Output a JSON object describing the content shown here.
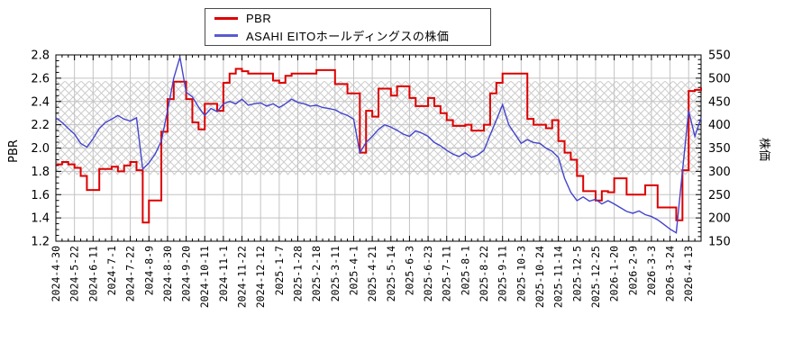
{
  "chart_data": {
    "type": "line",
    "title": "",
    "legend": {
      "position": "top",
      "entries": [
        {
          "label": "PBR",
          "color": "#dd0000"
        },
        {
          "label": "ASAHI EITOホールディングスの株価",
          "color": "#5a5ad0"
        }
      ]
    },
    "x_axis": {
      "tick_labels": [
        "2024-4-30",
        "2024-5-22",
        "2024-6-11",
        "2024-7-1",
        "2024-7-22",
        "2024-8-9",
        "2024-8-30",
        "2024-9-20",
        "2024-10-11",
        "2024-11-1",
        "2024-11-22",
        "2024-12-12",
        "2025-1-7",
        "2025-1-28",
        "2025-2-18",
        "2025-3-11",
        "2025-4-1",
        "2025-4-21",
        "2025-5-14",
        "2025-6-3",
        "2025-6-23",
        "2025-7-11",
        "2025-8-1",
        "2025-8-22",
        "2025-9-11",
        "2025-10-3",
        "2025-10-24",
        "2025-11-14",
        "2025-12-5",
        "2025-12-25",
        "2026-1-20",
        "2026-2-9",
        "2026-3-3",
        "2026-3-24",
        "2026-4-13"
      ],
      "points_per_tick": 3,
      "minor_ticks_per_interval": 3
    },
    "y_left": {
      "label": "PBR",
      "min": 1.2,
      "max": 2.8,
      "tick_step": 0.2,
      "minor_step": 0.05,
      "tick_labels": [
        "1.2",
        "1.4",
        "1.6",
        "1.8",
        "2.0",
        "2.2",
        "2.4",
        "2.6",
        "2.8"
      ]
    },
    "y_right": {
      "label": "株価",
      "min": 150,
      "max": 550,
      "tick_step": 50,
      "minor_step": 10,
      "tick_labels": [
        "150",
        "200",
        "250",
        "300",
        "350",
        "400",
        "450",
        "500",
        "550"
      ]
    },
    "band": {
      "axis": "left",
      "from": 1.77,
      "to": 2.575,
      "style": "diagonal-crosshatch",
      "color": "#cccccc"
    },
    "grid": {
      "color": "#c3c3c3",
      "vertical": true,
      "horizontal": true
    },
    "series": [
      {
        "name": "PBR",
        "axis": "left",
        "color": "#dd0000",
        "interpolation": "step-after",
        "width": 2,
        "values": [
          1.86,
          1.88,
          1.86,
          1.83,
          1.76,
          1.64,
          1.64,
          1.82,
          1.82,
          1.84,
          1.8,
          1.85,
          1.88,
          1.81,
          1.36,
          1.55,
          1.55,
          2.14,
          2.42,
          2.57,
          2.57,
          2.42,
          2.22,
          2.16,
          2.38,
          2.38,
          2.32,
          2.56,
          2.64,
          2.68,
          2.66,
          2.64,
          2.64,
          2.64,
          2.64,
          2.58,
          2.56,
          2.62,
          2.64,
          2.64,
          2.64,
          2.64,
          2.67,
          2.67,
          2.67,
          2.55,
          2.55,
          2.47,
          2.47,
          1.96,
          2.32,
          2.27,
          2.51,
          2.51,
          2.45,
          2.53,
          2.53,
          2.43,
          2.36,
          2.36,
          2.43,
          2.36,
          2.3,
          2.24,
          2.19,
          2.19,
          2.2,
          2.15,
          2.15,
          2.2,
          2.47,
          2.56,
          2.64,
          2.64,
          2.64,
          2.64,
          2.25,
          2.2,
          2.2,
          2.17,
          2.24,
          2.06,
          1.96,
          1.9,
          1.76,
          1.63,
          1.63,
          1.55,
          1.63,
          1.62,
          1.74,
          1.74,
          1.6,
          1.6,
          1.6,
          1.68,
          1.68,
          1.49,
          1.49,
          1.49,
          1.38,
          1.81,
          2.49,
          2.5,
          2.52
        ]
      },
      {
        "name": "ASAHI EITOホールディングスの株価",
        "axis": "right",
        "color": "#4444cc",
        "interpolation": "linear",
        "width": 1.4,
        "values": [
          415,
          405,
          392,
          380,
          360,
          352,
          370,
          392,
          405,
          412,
          420,
          412,
          408,
          415,
          305,
          318,
          337,
          365,
          430,
          500,
          545,
          470,
          460,
          438,
          420,
          435,
          428,
          445,
          450,
          445,
          455,
          442,
          445,
          447,
          440,
          445,
          437,
          445,
          455,
          448,
          445,
          440,
          442,
          437,
          435,
          432,
          425,
          420,
          412,
          340,
          362,
          375,
          390,
          400,
          395,
          388,
          380,
          375,
          387,
          382,
          375,
          362,
          355,
          345,
          337,
          332,
          340,
          330,
          335,
          345,
          378,
          410,
          443,
          400,
          380,
          360,
          368,
          362,
          360,
          350,
          343,
          330,
          285,
          255,
          237,
          245,
          236,
          240,
          230,
          237,
          230,
          222,
          214,
          210,
          215,
          207,
          203,
          196,
          186,
          176,
          168,
          300,
          430,
          375,
          415
        ]
      }
    ]
  }
}
